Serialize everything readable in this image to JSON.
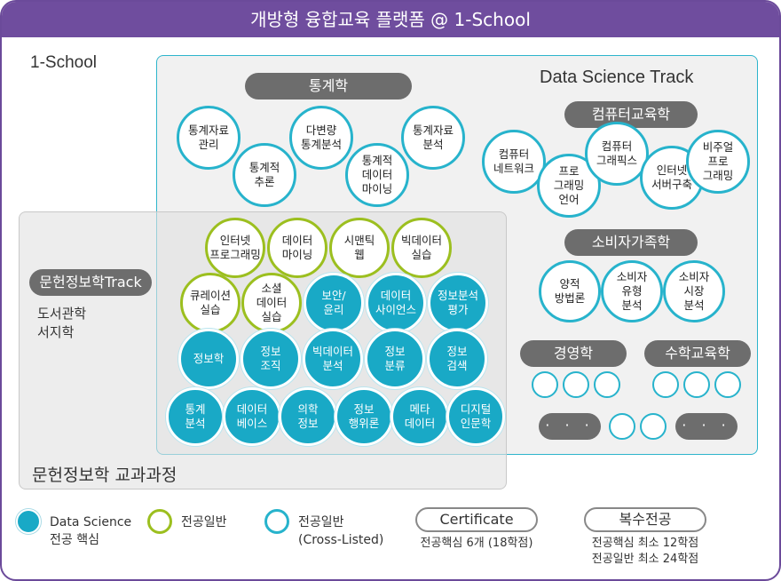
{
  "title": "개방형 융합교육 플랫폼 @ 1-School",
  "brand": "1-School",
  "ds_track_title": "Data Science Track",
  "lis_curriculum_title": "문헌정보학 교과과정",
  "lis_track": {
    "label": "문헌정보학Track",
    "subjects": [
      "도서관학",
      "서지학"
    ]
  },
  "groups": [
    {
      "key": "stats",
      "label": "통계학"
    },
    {
      "key": "cs_edu",
      "label": "컴퓨터교육학"
    },
    {
      "key": "consumer",
      "label": "소비자가족학"
    },
    {
      "key": "business",
      "label": "경영학"
    },
    {
      "key": "math_edu",
      "label": "수학교육학"
    }
  ],
  "nodes": [
    {
      "text": "통계자료\n관리",
      "type": "cross"
    },
    {
      "text": "통계적\n추론",
      "type": "cross"
    },
    {
      "text": "다변량\n통계분석",
      "type": "cross"
    },
    {
      "text": "통계적\n데이터\n마이닝",
      "type": "cross"
    },
    {
      "text": "통계자료\n분석",
      "type": "cross"
    },
    {
      "text": "컴퓨터\n네트워크",
      "type": "cross"
    },
    {
      "text": "프로\n그래밍\n언어",
      "type": "cross"
    },
    {
      "text": "컴퓨터\n그래픽스",
      "type": "cross"
    },
    {
      "text": "인터넷\n서버구축",
      "type": "cross"
    },
    {
      "text": "비주얼\n프로\n그래밍",
      "type": "cross"
    },
    {
      "text": "양적\n방법론",
      "type": "cross"
    },
    {
      "text": "소비자\n유형\n분석",
      "type": "cross"
    },
    {
      "text": "소비자\n시장\n분석",
      "type": "cross"
    },
    {
      "text": "인터넷\n프로그래밍",
      "type": "major"
    },
    {
      "text": "데이터\n마이닝",
      "type": "major"
    },
    {
      "text": "시맨틱\n웹",
      "type": "major"
    },
    {
      "text": "빅데이터\n실습",
      "type": "major"
    },
    {
      "text": "큐레이션\n실습",
      "type": "major"
    },
    {
      "text": "소셜\n데이터\n실습",
      "type": "major"
    },
    {
      "text": "보안/\n윤리",
      "type": "core"
    },
    {
      "text": "데이터\n사이언스",
      "type": "core"
    },
    {
      "text": "정보분석\n평가",
      "type": "core"
    },
    {
      "text": "정보학",
      "type": "core"
    },
    {
      "text": "정보\n조직",
      "type": "core"
    },
    {
      "text": "빅데이터\n분석",
      "type": "core"
    },
    {
      "text": "정보\n분류",
      "type": "core"
    },
    {
      "text": "정보\n검색",
      "type": "core"
    },
    {
      "text": "통계\n분석",
      "type": "core"
    },
    {
      "text": "데이터\n베이스",
      "type": "core"
    },
    {
      "text": "의학\n정보",
      "type": "core"
    },
    {
      "text": "정보\n행위론",
      "type": "core"
    },
    {
      "text": "메타\n데이터",
      "type": "core"
    },
    {
      "text": "디지털\n인문학",
      "type": "core"
    }
  ],
  "ellipsis": "· · ·",
  "legend": {
    "core": "Data Science\n전공 핵심",
    "major": "전공일반",
    "cross": "전공일반\n(Cross-Listed)",
    "certificate": {
      "label": "Certificate",
      "note": "전공핵심 6개 (18학점)"
    },
    "double_major": {
      "label": "복수전공",
      "note": "전공핵심 최소 12학점\n전공일반 최소 24학점"
    }
  },
  "colors": {
    "header": "#6f4d9e",
    "core": "#19a9c6",
    "cross_border": "#27b3cc",
    "major_border": "#9cbf1f",
    "pill": "#6d6d6d"
  }
}
